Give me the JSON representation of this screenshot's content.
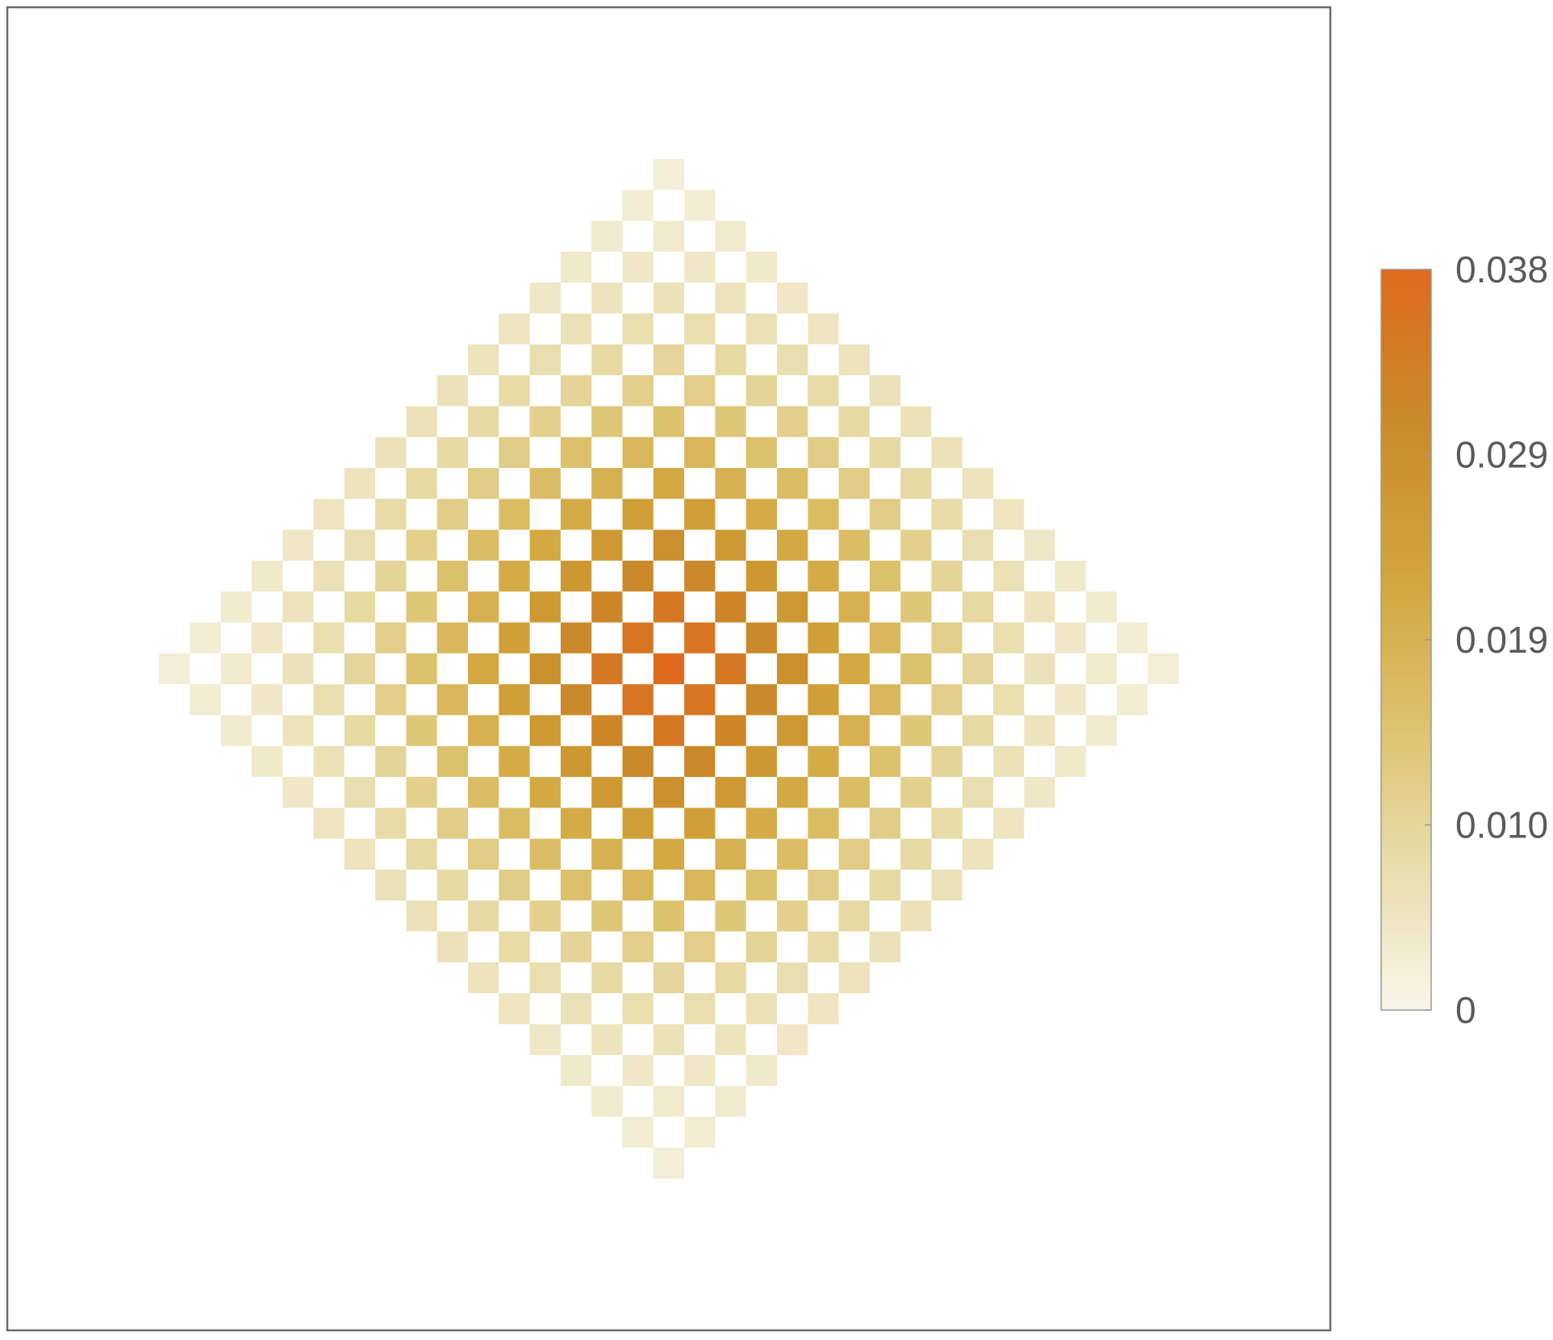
{
  "chart_data": {
    "type": "heatmap",
    "title": "",
    "xlabel": "",
    "ylabel": "",
    "grid": false,
    "legend_placement": "right",
    "description_of_values": "checkerboard diamond lattice: nonzero cells where |i|+|j| <= 16 and (i+j) is even, value peaks at center",
    "grid_range": {
      "i": [
        -16,
        16
      ],
      "j": [
        -16,
        16
      ]
    },
    "max_value": 0.038,
    "colorbar": {
      "min": 0,
      "max": 0.038,
      "ticks": [
        {
          "value": 0,
          "label": "0"
        },
        {
          "value": 0.0095,
          "label": "0.010"
        },
        {
          "value": 0.019,
          "label": "0.019"
        },
        {
          "value": 0.0285,
          "label": "0.029"
        },
        {
          "value": 0.038,
          "label": "0.038"
        }
      ],
      "colors": [
        "#f8f6ea",
        "#e8dcaa",
        "#dcc06a",
        "#d1a33a",
        "#c98a2a",
        "#de6a1e"
      ]
    },
    "frame_color": "#6b6b6b"
  }
}
